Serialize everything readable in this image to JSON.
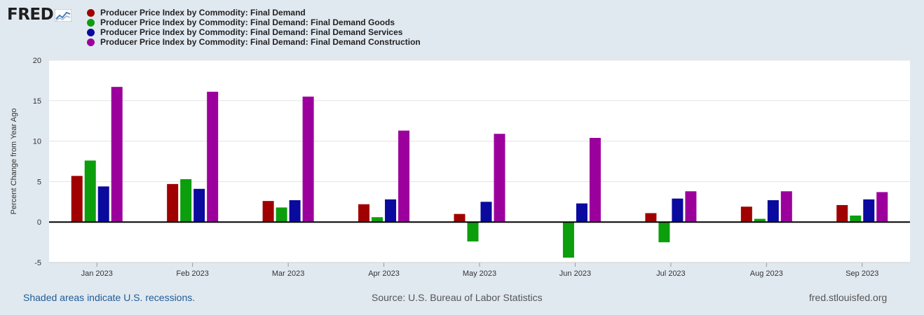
{
  "logo": {
    "text": "FRED"
  },
  "legend": [
    {
      "label": "Producer Price Index by Commodity: Final Demand",
      "color": "#a00000"
    },
    {
      "label": "Producer Price Index by Commodity: Final Demand: Final Demand Goods",
      "color": "#0c9e0c"
    },
    {
      "label": "Producer Price Index by Commodity: Final Demand: Final Demand Services",
      "color": "#0a0a9e"
    },
    {
      "label": "Producer Price Index by Commodity: Final Demand: Final Demand Construction",
      "color": "#9c009c"
    }
  ],
  "chart_data": {
    "type": "bar",
    "ylabel": "Percent Change from Year Ago",
    "ylim": [
      -5,
      20
    ],
    "yticks": [
      -5,
      0,
      5,
      10,
      15,
      20
    ],
    "categories": [
      "Jan 2023",
      "Feb 2023",
      "Mar 2023",
      "Apr 2023",
      "May 2023",
      "Jun 2023",
      "Jul 2023",
      "Aug 2023",
      "Sep 2023"
    ],
    "series": [
      {
        "name": "Producer Price Index by Commodity: Final Demand",
        "color": "#a00000",
        "values": [
          5.7,
          4.7,
          2.6,
          2.2,
          1.0,
          null,
          1.1,
          1.9,
          2.1
        ]
      },
      {
        "name": "Producer Price Index by Commodity: Final Demand: Final Demand Goods",
        "color": "#0c9e0c",
        "values": [
          7.6,
          5.3,
          1.8,
          0.6,
          -2.4,
          -4.4,
          -2.5,
          0.4,
          0.8
        ]
      },
      {
        "name": "Producer Price Index by Commodity: Final Demand: Final Demand Services",
        "color": "#0a0a9e",
        "values": [
          4.4,
          4.1,
          2.7,
          2.8,
          2.5,
          2.3,
          2.9,
          2.7,
          2.8
        ]
      },
      {
        "name": "Producer Price Index by Commodity: Final Demand: Final Demand Construction",
        "color": "#9c009c",
        "values": [
          16.7,
          16.1,
          15.5,
          11.3,
          10.9,
          10.4,
          3.8,
          3.8,
          3.7
        ]
      }
    ]
  },
  "footer": {
    "recession_note": "Shaded areas indicate U.S. recessions.",
    "source": "Source: U.S. Bureau of Labor Statistics",
    "site": "fred.stlouisfed.org"
  }
}
